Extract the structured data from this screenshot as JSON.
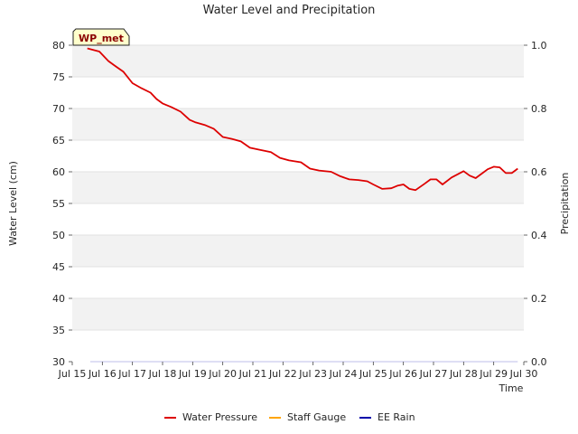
{
  "chart_data": {
    "type": "line",
    "title": "Water Level and Precipitation",
    "badge": "WP_met",
    "xlabel": "Time",
    "ylabel": "Water Level (cm)",
    "y2label": "Precipitation",
    "xlim": [
      15,
      30
    ],
    "ylim": [
      30,
      80
    ],
    "y2lim": [
      0.0,
      1.0
    ],
    "x_ticks": [
      15,
      16,
      17,
      18,
      19,
      20,
      21,
      22,
      23,
      24,
      25,
      26,
      27,
      28,
      29,
      30
    ],
    "x_tick_labels": [
      "Jul 15",
      "Jul 16",
      "Jul 17",
      "Jul 18",
      "Jul 19",
      "Jul 20",
      "Jul 21",
      "Jul 22",
      "Jul 23",
      "Jul 24",
      "Jul 25",
      "Jul 26",
      "Jul 27",
      "Jul 28",
      "Jul 29",
      "Jul 30"
    ],
    "y_ticks": [
      30,
      35,
      40,
      45,
      50,
      55,
      60,
      65,
      70,
      75,
      80
    ],
    "y_tick_labels": [
      "30",
      "35",
      "40",
      "45",
      "50",
      "55",
      "60",
      "65",
      "70",
      "75",
      "80"
    ],
    "y2_ticks": [
      0.0,
      0.2,
      0.4,
      0.6,
      0.8,
      1.0
    ],
    "y2_tick_labels": [
      "0.0",
      "0.2",
      "0.4",
      "0.6",
      "0.8",
      "1.0"
    ],
    "grid": true,
    "legend_position": "bottom-center",
    "series": [
      {
        "name": "Water Pressure",
        "color": "#dd0000",
        "axis": "left",
        "x": [
          15.5,
          15.9,
          16.2,
          16.4,
          16.7,
          17.0,
          17.3,
          17.6,
          17.8,
          18.0,
          18.3,
          18.6,
          18.9,
          19.1,
          19.4,
          19.7,
          20.0,
          20.3,
          20.6,
          20.9,
          21.2,
          21.6,
          21.9,
          22.2,
          22.6,
          22.9,
          23.2,
          23.6,
          23.9,
          24.2,
          24.5,
          24.8,
          25.0,
          25.3,
          25.6,
          25.8,
          26.0,
          26.2,
          26.4,
          26.7,
          26.9,
          27.1,
          27.3,
          27.6,
          27.8,
          28.0,
          28.2,
          28.4,
          28.6,
          28.8,
          29.0,
          29.2,
          29.4,
          29.6,
          29.8
        ],
        "values": [
          79.5,
          79.0,
          77.5,
          76.8,
          75.8,
          74.0,
          73.2,
          72.5,
          71.5,
          70.8,
          70.2,
          69.5,
          68.2,
          67.8,
          67.4,
          66.8,
          65.5,
          65.2,
          64.8,
          63.8,
          63.5,
          63.1,
          62.2,
          61.8,
          61.5,
          60.5,
          60.2,
          60.0,
          59.3,
          58.8,
          58.7,
          58.5,
          58.0,
          57.3,
          57.4,
          57.8,
          58.0,
          57.3,
          57.1,
          58.1,
          58.8,
          58.8,
          58.0,
          59.1,
          59.6,
          60.1,
          59.4,
          59.0,
          59.7,
          60.4,
          60.8,
          60.7,
          59.8,
          59.8,
          60.5
        ]
      },
      {
        "name": "Staff Gauge",
        "color": "#ffa500",
        "axis": "left",
        "x": [],
        "values": []
      },
      {
        "name": "EE Rain",
        "color": "#0000aa",
        "axis": "right",
        "x": [
          15.6,
          29.8
        ],
        "values": [
          0.0,
          0.0
        ]
      }
    ]
  }
}
